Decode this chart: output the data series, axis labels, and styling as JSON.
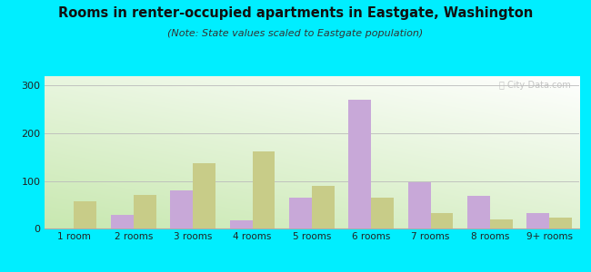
{
  "title": "Rooms in renter-occupied apartments in Eastgate, Washington",
  "subtitle": "(Note: State values scaled to Eastgate population)",
  "categories": [
    "1 room",
    "2 rooms",
    "3 rooms",
    "4 rooms",
    "5 rooms",
    "6 rooms",
    "7 rooms",
    "8 rooms",
    "9+ rooms"
  ],
  "eastgate_values": [
    0,
    28,
    80,
    18,
    65,
    270,
    98,
    68,
    33
  ],
  "washington_values": [
    58,
    70,
    137,
    162,
    90,
    65,
    32,
    20,
    22
  ],
  "eastgate_color": "#c8a8d8",
  "washington_color": "#c8cc88",
  "background_outer": "#00eeff",
  "plot_bg_colors": [
    "#b8e8b0",
    "#f8fff8"
  ],
  "ylim": [
    0,
    320
  ],
  "yticks": [
    0,
    100,
    200,
    300
  ],
  "bar_width": 0.38,
  "figsize": [
    6.5,
    3.0
  ],
  "dpi": 100
}
